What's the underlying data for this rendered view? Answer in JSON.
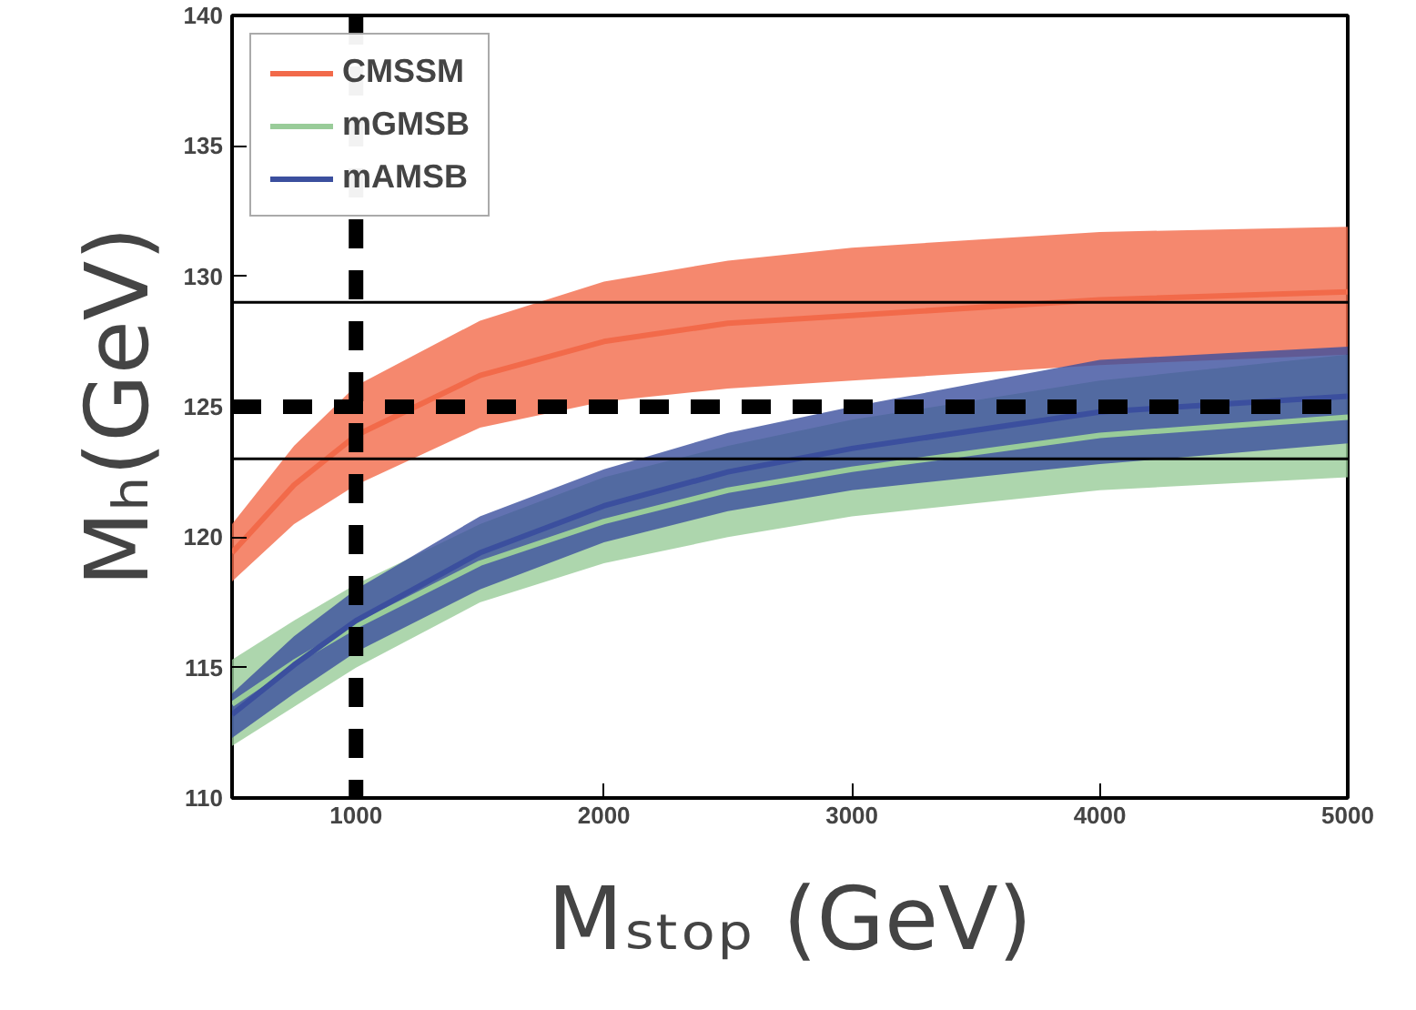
{
  "chart_data": {
    "type": "line",
    "xlabel": "Mₛₜₒₚ (GeV)",
    "ylabel": "Mₕ(GeV)",
    "x": [
      500,
      750,
      1000,
      1500,
      2000,
      2500,
      3000,
      4000,
      5000
    ],
    "xlim": [
      500,
      5000
    ],
    "ylim": [
      110,
      140
    ],
    "xticks": [
      1000,
      2000,
      3000,
      4000,
      5000
    ],
    "yticks": [
      110,
      115,
      120,
      125,
      130,
      135,
      140
    ],
    "series": [
      {
        "name": "CMSSM",
        "color": "#f26a4a",
        "values": [
          119.4,
          122.0,
          123.9,
          126.2,
          127.5,
          128.2,
          128.5,
          129.1,
          129.4
        ],
        "lower": [
          118.3,
          120.5,
          122.0,
          124.2,
          125.2,
          125.7,
          126.0,
          126.6,
          127.0
        ],
        "upper": [
          120.5,
          123.5,
          125.8,
          128.3,
          129.8,
          130.6,
          131.1,
          131.7,
          131.9
        ]
      },
      {
        "name": "mGMSB",
        "color": "#99cc99",
        "values": [
          113.6,
          115.2,
          116.6,
          119.0,
          120.6,
          121.8,
          122.6,
          123.9,
          124.6
        ],
        "lower": [
          112.0,
          113.5,
          115.0,
          117.5,
          119.0,
          120.0,
          120.8,
          121.8,
          122.3
        ],
        "upper": [
          115.3,
          116.8,
          118.2,
          120.5,
          122.3,
          123.5,
          124.5,
          126.0,
          127.0
        ]
      },
      {
        "name": "mAMSB",
        "color": "#3b4f9e",
        "values": [
          113.2,
          115.1,
          116.8,
          119.4,
          121.2,
          122.5,
          123.4,
          124.8,
          125.4
        ],
        "lower": [
          112.3,
          114.0,
          115.6,
          118.0,
          119.8,
          121.0,
          121.8,
          122.8,
          123.6
        ],
        "upper": [
          114.0,
          116.2,
          118.0,
          120.8,
          122.6,
          124.0,
          125.0,
          126.8,
          127.3
        ]
      }
    ],
    "ref_lines": [
      {
        "axis": "y",
        "value": 129,
        "color": "#000000",
        "line_style": "solid"
      },
      {
        "axis": "y",
        "value": 123,
        "color": "#000000",
        "line_style": "solid"
      },
      {
        "axis": "y",
        "value": 125,
        "color": "#000000",
        "line_style": "dashed"
      },
      {
        "axis": "x",
        "value": 1000,
        "color": "#000000",
        "line_style": "dashed"
      }
    ],
    "legend": "top left",
    "grid": false
  }
}
